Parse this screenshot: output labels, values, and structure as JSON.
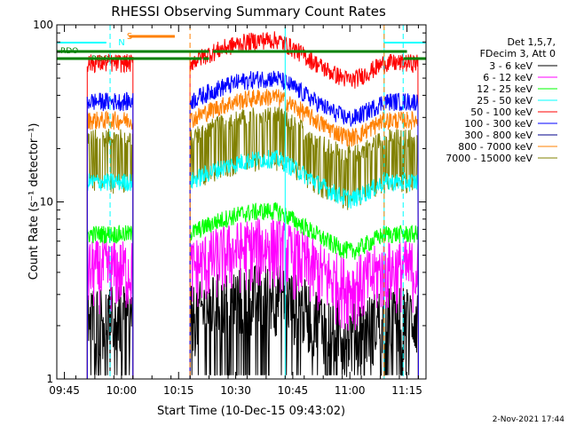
{
  "chart_data": {
    "type": "line",
    "title": "RHESSI Observing Summary Count Rates",
    "xlabel": "Start Time (10-Dec-15 09:43:02)",
    "ylabel": "Count Rate (s⁻¹ detector⁻¹)",
    "yscale": "log",
    "ylim": [
      1,
      100
    ],
    "xlim_minutes_after_0943": [
      0,
      97
    ],
    "x_tick_labels": [
      "09:45",
      "10:00",
      "10:15",
      "10:30",
      "10:45",
      "11:00",
      "11:15"
    ],
    "x_tick_minutes": [
      2,
      17,
      32,
      47,
      62,
      77,
      92
    ],
    "y_tick_labels": [
      "1",
      "10",
      "100"
    ],
    "y_tick_values": [
      1,
      10,
      100
    ],
    "legend_header": [
      "Det 1,5,7,",
      "FDecim 3, Att 0"
    ],
    "segments_minutes": [
      [
        8,
        20
      ],
      [
        35,
        95
      ]
    ],
    "dashed_markers_minutes": [
      14,
      35,
      86,
      91
    ],
    "spike_minutes": [
      60,
      86
    ],
    "series": [
      {
        "name": "3 - 6 keV",
        "color": "#000000",
        "level": 2.3
      },
      {
        "name": "6 - 12 keV",
        "color": "#ff00ff",
        "level": 4.2
      },
      {
        "name": "12 - 25 keV",
        "color": "#00ff00",
        "level": 6.6
      },
      {
        "name": "25 - 50 keV",
        "color": "#00ffff",
        "level": 13
      },
      {
        "name": "50 - 100 keV",
        "color": "#ff0000",
        "level": 61
      },
      {
        "name": "100 - 300 keV",
        "color": "#0000ff",
        "level": 37
      },
      {
        "name": "300 - 800 keV",
        "color": "#00008b",
        "level": 3.2
      },
      {
        "name": "800 - 7000 keV",
        "color": "#ff8000",
        "level": 29
      },
      {
        "name": "7000 - 15000 keV",
        "color": "#808000",
        "level": 21
      }
    ],
    "annotations": {
      "saa_label": "S",
      "night_label": "N",
      "rdo_label": "RDO",
      "rdo_label_lower": "RDO"
    },
    "timestamp": "2-Nov-2021 17:44"
  }
}
